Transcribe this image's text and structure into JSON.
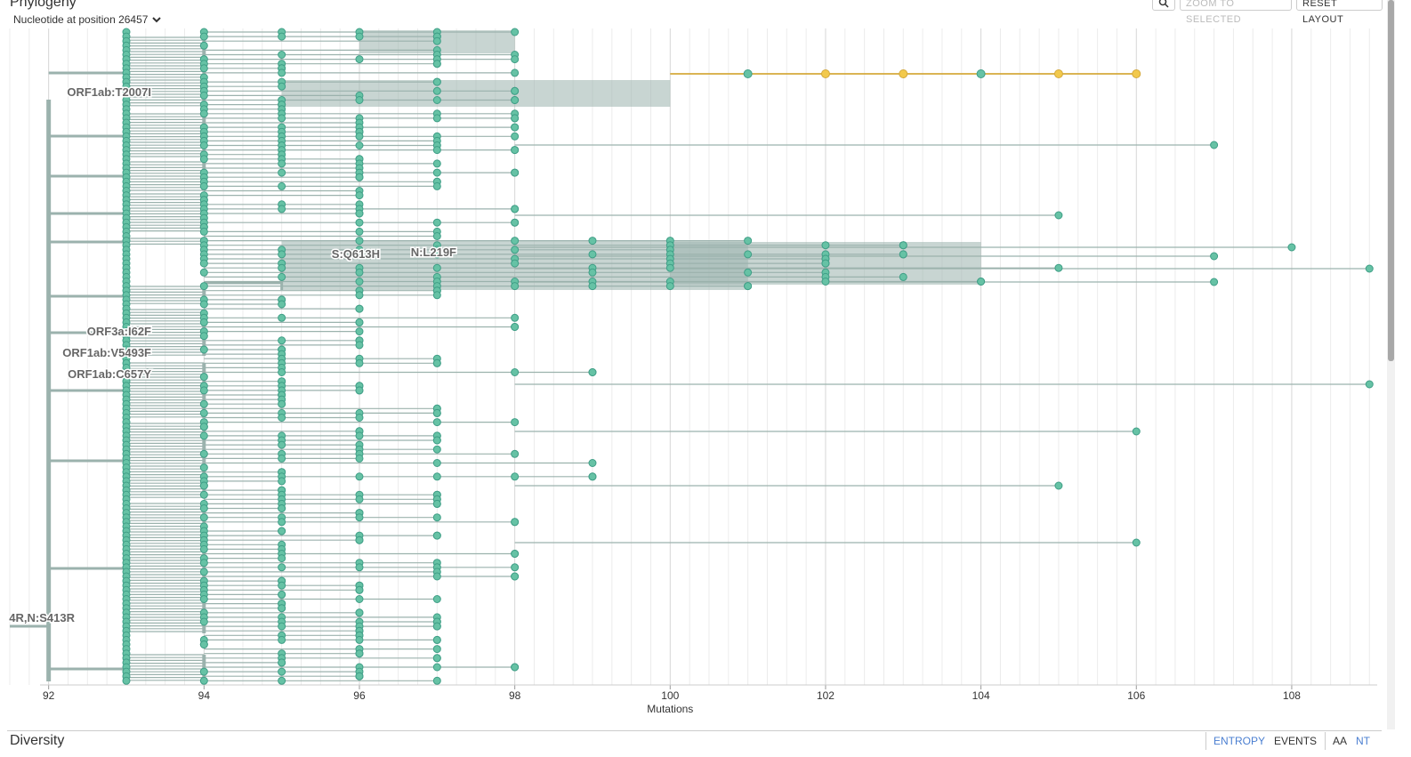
{
  "panel": {
    "title": "Phylogeny",
    "subtitle": "Nucleotide at position 26457"
  },
  "buttons": {
    "search_icon": "search-icon",
    "zoom_selected": "ZOOM TO SELECTED",
    "reset_layout": "RESET LAYOUT"
  },
  "chart_data": {
    "type": "tree",
    "xlabel": "Mutations",
    "xlim": [
      91.5,
      109.1
    ],
    "ticks": [
      "92",
      "94",
      "96",
      "98",
      "100",
      "102",
      "104",
      "106",
      "108"
    ],
    "tick_values": [
      92,
      94,
      96,
      98,
      100,
      102,
      104,
      106,
      108
    ],
    "colors": {
      "branch": "#9bb2ad",
      "tip": "#66c2a5",
      "tip_stroke": "#3f9e86",
      "selected": "#f2c94c",
      "selected_branch": "#d4a93c"
    },
    "branch_labels": [
      {
        "text": "ORF1ab:T2007I",
        "x": 92
      },
      {
        "text": "S:Q613H",
        "x": 95
      },
      {
        "text": "N:L219F",
        "x": 96.3
      },
      {
        "text": "ORF3a:I62F",
        "x": 93
      },
      {
        "text": "ORF1ab:V5493F",
        "x": 93
      },
      {
        "text": "ORF1ab:C657Y",
        "x": 93
      },
      {
        "text": "4R,N:S413R",
        "x": 91.5
      }
    ],
    "selected_lineage": {
      "x": [
        101,
        102,
        103,
        104,
        105,
        106
      ],
      "color_name": "yellow"
    },
    "outlier_tips": [
      107,
      108,
      109
    ]
  },
  "diversity": {
    "title": "Diversity",
    "tabs": [
      "ENTROPY",
      "EVENTS"
    ],
    "nt_tabs": [
      "AA",
      "NT"
    ]
  }
}
